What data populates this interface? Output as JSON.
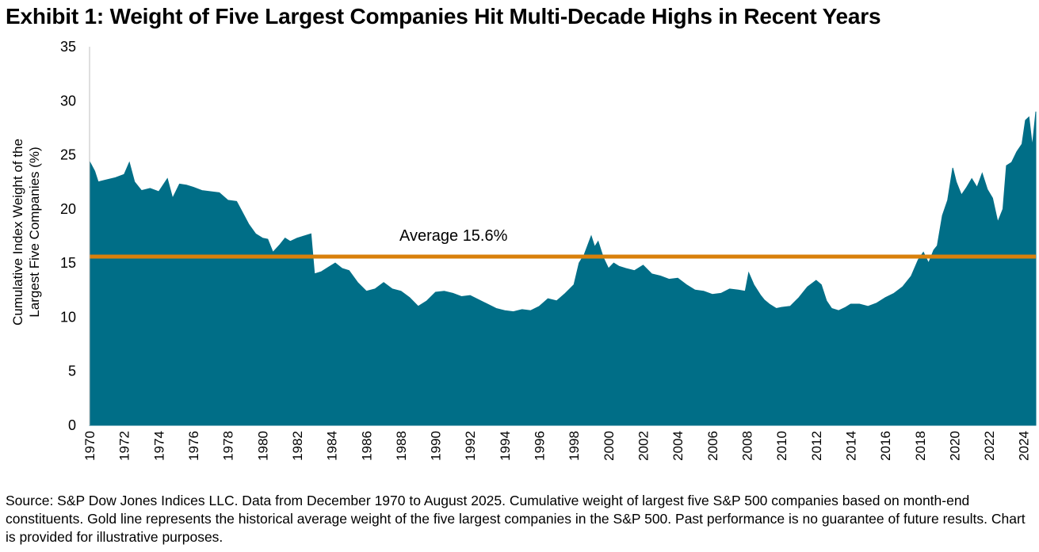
{
  "title": "Exhibit 1: Weight of Five Largest Companies Hit Multi-Decade Highs in Recent Years",
  "source": "Source: S&P Dow Jones Indices LLC. Data from December 1970 to August 2025. Cumulative weight of largest five S&P 500 companies based on month-end constituents. Gold line represents the historical average weight of the five largest companies in the S&P 500. Past performance is no guarantee of future results. Chart is provided for illustrative purposes.",
  "colors": {
    "area": "#006e87",
    "average_line": "#d9800b",
    "axis": "#bfbfbf"
  },
  "chart_data": {
    "type": "area",
    "ylabel": "Cumulative Index Weight of the Largest Five Companies (%)",
    "ylabel_lines": [
      "Cumulative Index Weight of the",
      "Largest Five Companies (%)"
    ],
    "ylim": [
      0,
      35
    ],
    "xlim": [
      1970,
      2024.7
    ],
    "y_ticks": [
      0,
      5,
      10,
      15,
      20,
      25,
      30,
      35
    ],
    "x_ticks": [
      1970,
      1972,
      1974,
      1976,
      1978,
      1980,
      1982,
      1984,
      1986,
      1988,
      1990,
      1992,
      1994,
      1996,
      1998,
      2000,
      2002,
      2004,
      2006,
      2008,
      2010,
      2012,
      2014,
      2016,
      2018,
      2020,
      2022,
      2024
    ],
    "grid": false,
    "average": {
      "value": 15.6,
      "label": "Average 15.6%"
    },
    "series": [
      {
        "x": [
          1970.0,
          1970.3,
          1970.5,
          1971.0,
          1971.5,
          1972.0,
          1972.3,
          1972.6,
          1973.0,
          1973.5,
          1974.0,
          1974.5,
          1974.8,
          1975.2,
          1975.6,
          1976.0,
          1976.5,
          1977.0,
          1977.5,
          1978.0,
          1978.5,
          1978.8,
          1979.2,
          1979.6,
          1980.0,
          1980.3,
          1980.6,
          1981.0,
          1981.3,
          1981.6,
          1982.0,
          1982.4,
          1982.8,
          1983.0,
          1983.4,
          1983.8,
          1984.2,
          1984.6,
          1985.0,
          1985.5,
          1986.0,
          1986.5,
          1987.0,
          1987.5,
          1988.0,
          1988.5,
          1989.0,
          1989.5,
          1990.0,
          1990.5,
          1991.0,
          1991.5,
          1992.0,
          1992.5,
          1993.0,
          1993.5,
          1994.0,
          1994.5,
          1995.0,
          1995.5,
          1996.0,
          1996.5,
          1997.0,
          1997.5,
          1998.0,
          1998.3,
          1998.6,
          1999.0,
          1999.2,
          1999.4,
          1999.7,
          2000.0,
          2000.3,
          2000.6,
          2001.0,
          2001.5,
          2002.0,
          2002.5,
          2003.0,
          2003.5,
          2004.0,
          2004.5,
          2005.0,
          2005.5,
          2006.0,
          2006.5,
          2007.0,
          2007.5,
          2007.9,
          2008.1,
          2008.4,
          2008.8,
          2009.0,
          2009.3,
          2009.7,
          2010.0,
          2010.5,
          2011.0,
          2011.5,
          2012.0,
          2012.3,
          2012.6,
          2012.9,
          2013.3,
          2013.7,
          2014.0,
          2014.5,
          2015.0,
          2015.5,
          2016.0,
          2016.5,
          2017.0,
          2017.5,
          2017.9,
          2018.2,
          2018.5,
          2018.8,
          2019.0,
          2019.3,
          2019.6,
          2019.9,
          2020.1,
          2020.4,
          2020.7,
          2021.0,
          2021.3,
          2021.6,
          2021.9,
          2022.2,
          2022.5,
          2022.8,
          2023.0,
          2023.3,
          2023.6,
          2023.9,
          2024.1,
          2024.3,
          2024.5,
          2024.7
        ],
        "y": [
          24.4,
          23.5,
          22.5,
          22.7,
          22.9,
          23.2,
          24.3,
          22.5,
          21.7,
          21.9,
          21.6,
          22.8,
          21.0,
          22.3,
          22.2,
          22.0,
          21.7,
          21.6,
          21.5,
          20.8,
          20.7,
          19.8,
          18.6,
          17.7,
          17.3,
          17.2,
          16.0,
          16.7,
          17.3,
          17.0,
          17.3,
          17.5,
          17.7,
          14.0,
          14.2,
          14.6,
          15.0,
          14.5,
          14.3,
          13.2,
          12.4,
          12.6,
          13.2,
          12.6,
          12.4,
          11.8,
          11.0,
          11.5,
          12.3,
          12.4,
          12.2,
          11.9,
          12.0,
          11.6,
          11.2,
          10.8,
          10.6,
          10.5,
          10.7,
          10.6,
          11.0,
          11.7,
          11.5,
          12.2,
          13.0,
          15.0,
          15.8,
          17.5,
          16.5,
          17.0,
          15.5,
          14.5,
          15.0,
          14.7,
          14.5,
          14.3,
          14.8,
          14.0,
          13.8,
          13.5,
          13.6,
          13.0,
          12.5,
          12.4,
          12.1,
          12.2,
          12.6,
          12.5,
          12.4,
          14.1,
          13.0,
          12.0,
          11.6,
          11.2,
          10.8,
          10.9,
          11.0,
          11.8,
          12.8,
          13.4,
          13.0,
          11.5,
          10.8,
          10.6,
          10.9,
          11.2,
          11.2,
          11.0,
          11.3,
          11.8,
          12.2,
          12.8,
          13.8,
          15.3,
          16.0,
          15.0,
          16.2,
          16.6,
          19.4,
          20.8,
          23.8,
          22.5,
          21.3,
          22.0,
          22.8,
          22.0,
          23.3,
          21.8,
          21.0,
          18.8,
          20.0,
          24.0,
          24.3,
          25.3,
          26.0,
          28.2,
          28.5,
          25.8,
          29.0
        ]
      }
    ]
  }
}
